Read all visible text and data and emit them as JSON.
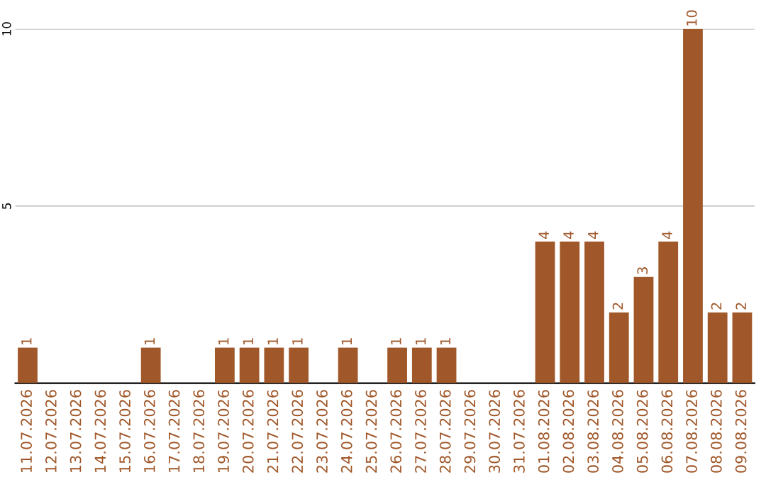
{
  "chart_data": {
    "type": "bar",
    "categories": [
      "11.07.2026",
      "12.07.2026",
      "13.07.2026",
      "14.07.2026",
      "15.07.2026",
      "16.07.2026",
      "17.07.2026",
      "18.07.2026",
      "19.07.2026",
      "20.07.2026",
      "21.07.2026",
      "22.07.2026",
      "23.07.2026",
      "24.07.2026",
      "25.07.2026",
      "26.07.2026",
      "27.07.2026",
      "28.07.2026",
      "29.07.2026",
      "30.07.2026",
      "31.07.2026",
      "01.08.2026",
      "02.08.2026",
      "03.08.2026",
      "04.08.2026",
      "05.08.2026",
      "06.08.2026",
      "07.08.2026",
      "08.08.2026",
      "09.08.2026"
    ],
    "values": [
      1,
      0,
      0,
      0,
      0,
      1,
      0,
      0,
      1,
      1,
      1,
      1,
      0,
      1,
      0,
      1,
      1,
      1,
      0,
      0,
      0,
      4,
      4,
      4,
      2,
      3,
      4,
      10,
      2,
      2
    ],
    "value_labels": [
      "1",
      null,
      null,
      null,
      null,
      "1",
      null,
      null,
      "1",
      "1",
      "1",
      "1",
      null,
      "1",
      null,
      "1",
      "1",
      "1",
      null,
      null,
      null,
      "4",
      "4",
      "4",
      "2",
      "3",
      "4",
      "10",
      "2",
      "2"
    ],
    "color": "#a0582a",
    "ylim": [
      0,
      10
    ],
    "yticks": [
      5,
      10
    ],
    "grid": "y"
  }
}
